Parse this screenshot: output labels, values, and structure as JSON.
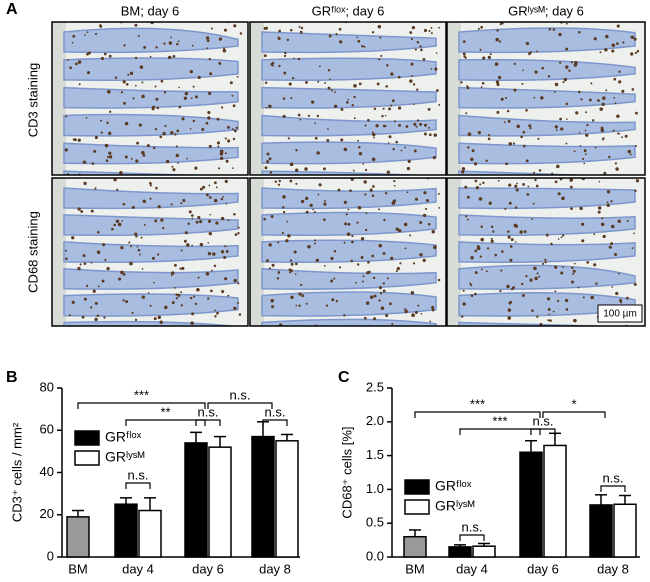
{
  "figure": {
    "panel_label": "A",
    "columns": [
      "BM; day 6",
      "GRᶠˡᵒˣ; day 6",
      "GRˡʸˢᴹ; day 6"
    ],
    "rows": [
      "CD3 staining",
      "CD68 staining"
    ],
    "scale_bar": "100 µm"
  },
  "chart_data": [
    {
      "type": "bar",
      "panel_label": "B",
      "ylabel": "CD3⁺ cells / mm²",
      "categories": [
        "BM",
        "day 4",
        "day 6",
        "day 8"
      ],
      "series": [
        {
          "color": "#999999",
          "values": [
            19,
            null,
            null,
            null
          ],
          "errors": [
            3,
            null,
            null,
            null
          ]
        },
        {
          "name": "GRᶠˡᵒˣ",
          "color": "#000000",
          "values": [
            null,
            25,
            54,
            57
          ],
          "errors": [
            null,
            3,
            5,
            7
          ]
        },
        {
          "name": "GRˡʸˢᴹ",
          "color": "#ffffff",
          "values": [
            null,
            22,
            52,
            55
          ],
          "errors": [
            null,
            6,
            5,
            3
          ]
        }
      ],
      "ylim": [
        0,
        80
      ],
      "yticks": [
        0,
        20,
        40,
        60,
        80
      ],
      "annotations": [
        "***",
        "**",
        "n.s.",
        "n.s.",
        "n.s.",
        "n.s."
      ]
    },
    {
      "type": "bar",
      "panel_label": "C",
      "ylabel": "CD68⁺ cells [%]",
      "categories": [
        "BM",
        "day 4",
        "day 6",
        "day 8"
      ],
      "series": [
        {
          "color": "#999999",
          "values": [
            0.3,
            null,
            null,
            null
          ],
          "errors": [
            0.1,
            null,
            null,
            null
          ]
        },
        {
          "name": "GRᶠˡᵒˣ",
          "color": "#000000",
          "values": [
            null,
            0.15,
            1.55,
            0.77
          ],
          "errors": [
            null,
            0.03,
            0.17,
            0.15
          ]
        },
        {
          "name": "GRˡʸˢᴹ",
          "color": "#ffffff",
          "values": [
            null,
            0.16,
            1.65,
            0.78
          ],
          "errors": [
            null,
            0.04,
            0.18,
            0.13
          ]
        }
      ],
      "ylim": [
        0,
        2.5
      ],
      "yticks": [
        {
          "value": 0,
          "label": "0.0"
        },
        0.5,
        {
          "value": 1,
          "label": "1.0"
        },
        1.5,
        {
          "value": 2,
          "label": "2.0"
        },
        2.5
      ],
      "annotations": [
        "***",
        "***",
        "n.s.",
        "*",
        "n.s.",
        "n.s."
      ]
    }
  ]
}
